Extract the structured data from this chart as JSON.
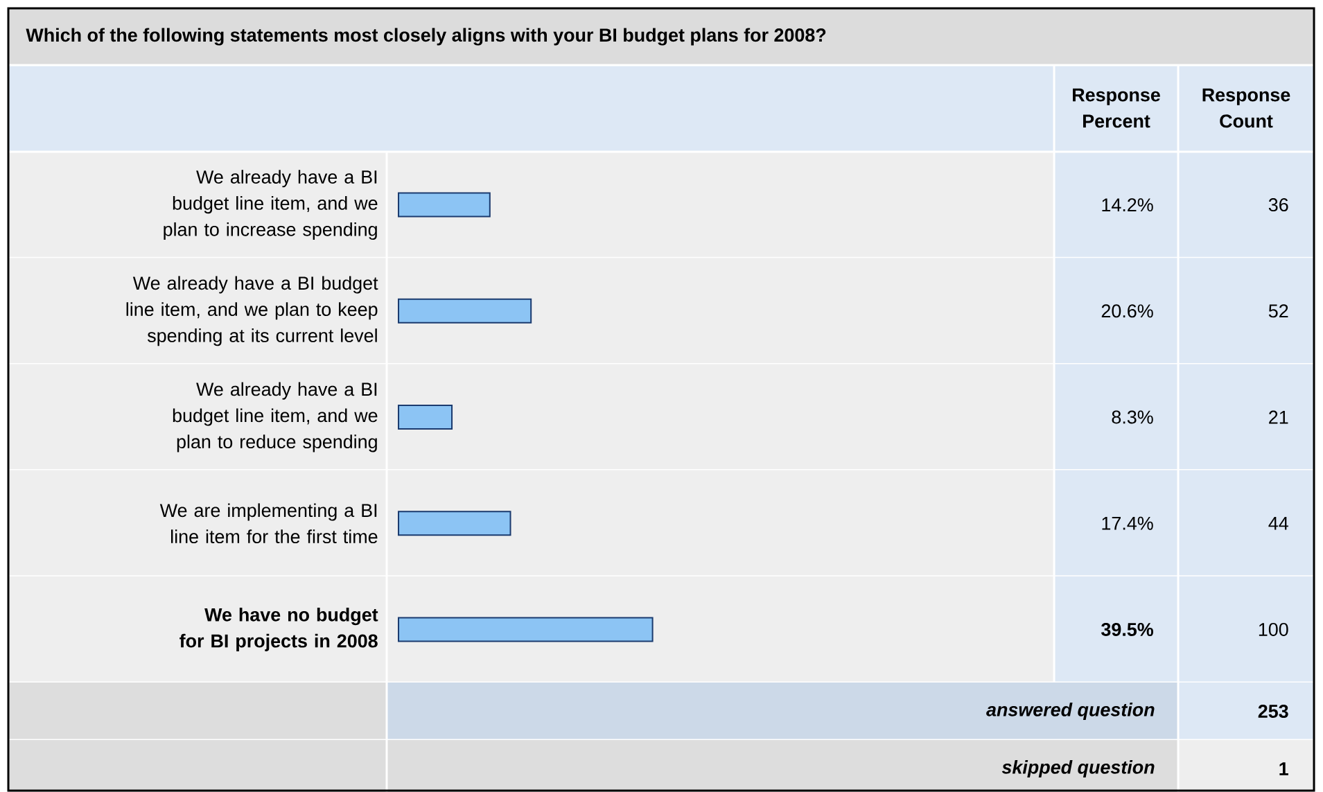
{
  "chart_data": {
    "type": "bar",
    "orientation": "horizontal",
    "title": "Which of the following statements most closely aligns with your BI budget plans for 2008?",
    "categories": [
      "We already have a BI budget line item, and we plan to increase spending",
      "We already have a BI budget line item, and we plan to keep spending at its current level",
      "We already have a BI budget line item, and we plan to reduce spending",
      "We are implementing a BI line item for the first time",
      "We have no budget for BI projects in 2008"
    ],
    "values": [
      14.2,
      20.6,
      8.3,
      17.4,
      39.5
    ],
    "value_labels": [
      "14.2%",
      "20.6%",
      "8.3%",
      "17.4%",
      "39.5%"
    ],
    "color": "#8cc4f4",
    "annotations": [
      "Response Percent",
      "Response Count",
      "36",
      "52",
      "21",
      "44",
      "100",
      "answered question",
      "253",
      "skipped question",
      "1"
    ]
  }
}
